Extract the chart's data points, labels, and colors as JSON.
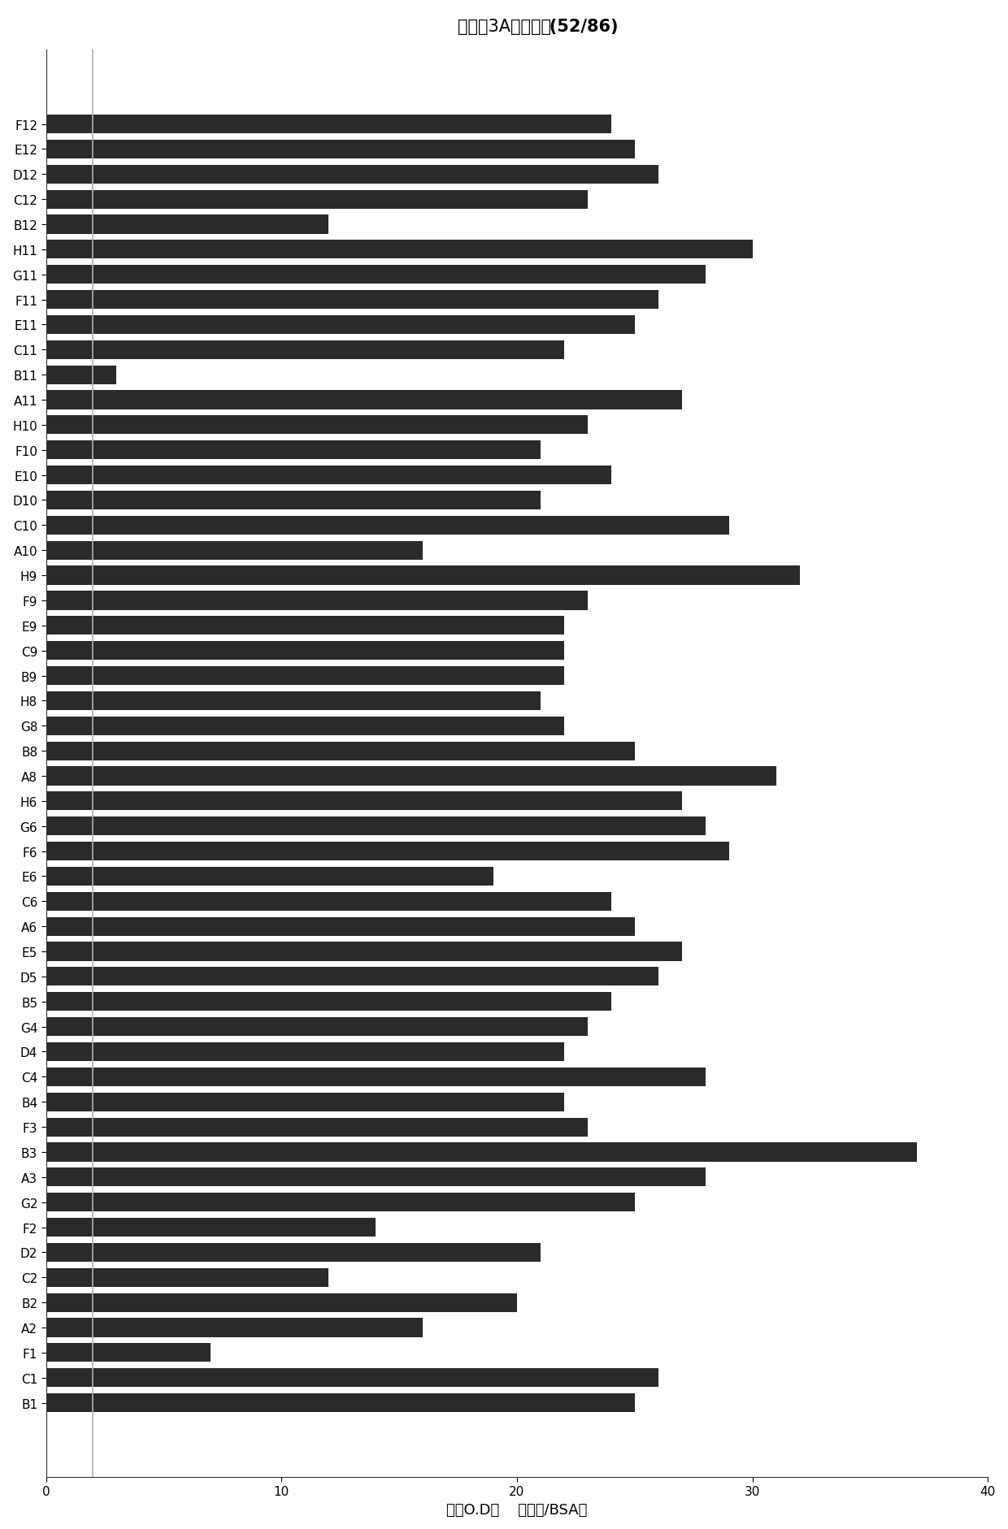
{
  "title_cn": "信号素3A阳性克隆",
  "title_bold": " (52/86)",
  "xlabel": "相对O.D值    （样品/BSA）",
  "xlim": [
    0,
    40
  ],
  "xticks": [
    0,
    10,
    20,
    30,
    40
  ],
  "bar_color": "#2a2a2a",
  "background_color": "#ffffff",
  "vline_x": 2,
  "vline_color": "#b0b0b0",
  "categories": [
    "F12",
    "E12",
    "D12",
    "C12",
    "B12",
    "H11",
    "G11",
    "F11",
    "E11",
    "C11",
    "B11",
    "A11",
    "H10",
    "F10",
    "E10",
    "D10",
    "C10",
    "A10",
    "H9",
    "F9",
    "E9",
    "C9",
    "B9",
    "H8",
    "G8",
    "B8",
    "A8",
    "H6",
    "G6",
    "F6",
    "E6",
    "C6",
    "A6",
    "E5",
    "D5",
    "B5",
    "G4",
    "D4",
    "C4",
    "B4",
    "F3",
    "B3",
    "A3",
    "G2",
    "F2",
    "D2",
    "C2",
    "B2",
    "A2",
    "F1",
    "C1",
    "B1"
  ],
  "values": [
    24,
    25,
    26,
    23,
    12,
    30,
    28,
    26,
    25,
    22,
    3,
    27,
    23,
    21,
    24,
    21,
    29,
    16,
    32,
    23,
    22,
    22,
    22,
    21,
    22,
    25,
    31,
    27,
    28,
    29,
    19,
    24,
    25,
    27,
    26,
    24,
    23,
    22,
    28,
    22,
    23,
    37,
    28,
    25,
    14,
    21,
    12,
    20,
    16,
    7,
    26,
    25
  ],
  "title_fontsize": 15,
  "tick_fontsize": 11,
  "label_fontsize": 13
}
